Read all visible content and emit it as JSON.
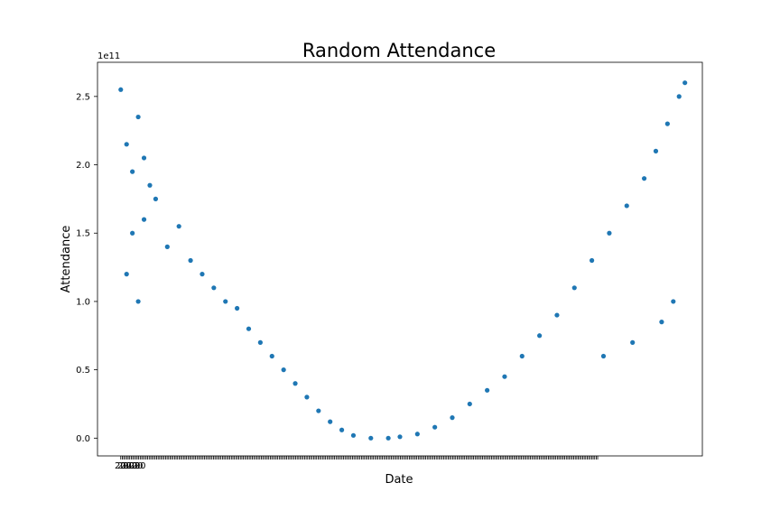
{
  "chart_data": {
    "type": "scatter",
    "title": "Random Attendance",
    "xlabel": "Date",
    "ylabel": "Attendance",
    "y_offset_text": "1e11",
    "y_unit_scale": 100000000000.0,
    "ylim": [
      -13000000000.0,
      275000000000.0
    ],
    "y_ticks": [
      0.0,
      0.5,
      1.0,
      1.5,
      2.0,
      2.5
    ],
    "y_tick_labels": [
      "0.0",
      "0.5",
      "1.0",
      "1.5",
      "2.0",
      "2.5"
    ],
    "x_tick_label_text": "2020",
    "x_is_categorical_dates": true,
    "marker": "o",
    "color": "#1f77b4",
    "grid": false,
    "legend": "none",
    "series": [
      {
        "trend": "U-shaped attendance (×1e11) versus date index: high at both ends (~2.5e11), near zero in the middle",
        "points": [
          [
            0.02,
            2.55
          ],
          [
            0.03,
            2.15
          ],
          [
            0.04,
            1.95
          ],
          [
            0.05,
            2.35
          ],
          [
            0.06,
            2.05
          ],
          [
            0.07,
            1.85
          ],
          [
            0.03,
            1.2
          ],
          [
            0.04,
            1.5
          ],
          [
            0.05,
            1.0
          ],
          [
            0.06,
            1.6
          ],
          [
            0.08,
            1.75
          ],
          [
            0.1,
            1.4
          ],
          [
            0.12,
            1.55
          ],
          [
            0.14,
            1.3
          ],
          [
            0.16,
            1.2
          ],
          [
            0.18,
            1.1
          ],
          [
            0.2,
            1.0
          ],
          [
            0.22,
            0.95
          ],
          [
            0.24,
            0.8
          ],
          [
            0.26,
            0.7
          ],
          [
            0.28,
            0.6
          ],
          [
            0.3,
            0.5
          ],
          [
            0.32,
            0.4
          ],
          [
            0.34,
            0.3
          ],
          [
            0.36,
            0.2
          ],
          [
            0.38,
            0.12
          ],
          [
            0.4,
            0.06
          ],
          [
            0.42,
            0.02
          ],
          [
            0.45,
            0.0
          ],
          [
            0.48,
            0.0
          ],
          [
            0.5,
            0.01
          ],
          [
            0.53,
            0.03
          ],
          [
            0.56,
            0.08
          ],
          [
            0.59,
            0.15
          ],
          [
            0.62,
            0.25
          ],
          [
            0.65,
            0.35
          ],
          [
            0.68,
            0.45
          ],
          [
            0.71,
            0.6
          ],
          [
            0.74,
            0.75
          ],
          [
            0.77,
            0.9
          ],
          [
            0.8,
            1.1
          ],
          [
            0.83,
            1.3
          ],
          [
            0.86,
            1.5
          ],
          [
            0.89,
            1.7
          ],
          [
            0.92,
            1.9
          ],
          [
            0.94,
            2.1
          ],
          [
            0.96,
            2.3
          ],
          [
            0.98,
            2.5
          ],
          [
            0.99,
            2.6
          ],
          [
            0.97,
            1.0
          ],
          [
            0.95,
            0.85
          ],
          [
            0.9,
            0.7
          ],
          [
            0.85,
            0.6
          ]
        ]
      }
    ]
  }
}
